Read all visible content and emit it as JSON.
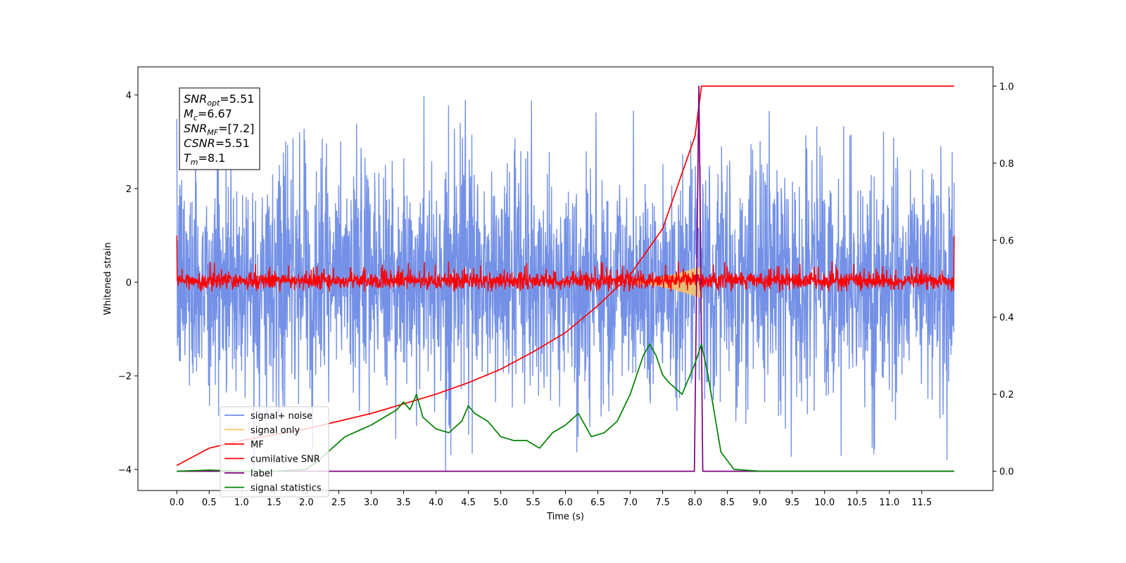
{
  "chart_data": {
    "type": "line",
    "xlabel": "Time (s)",
    "ylabel": "Whitened strain",
    "xlim": [
      -0.6,
      12.6
    ],
    "ylim": [
      -4.45,
      4.6
    ],
    "ylim_right": [
      -0.05,
      1.05
    ],
    "x_ticks": [
      0.0,
      0.5,
      1.0,
      1.5,
      2.0,
      2.5,
      3.0,
      3.5,
      4.0,
      4.5,
      5.0,
      5.5,
      6.0,
      6.5,
      7.0,
      7.5,
      8.0,
      8.5,
      9.0,
      9.5,
      10.0,
      10.5,
      11.0,
      11.5
    ],
    "x_tick_labels": [
      "0.0",
      "0.5",
      "1.0",
      "1.5",
      "2.0",
      "2.5",
      "3.0",
      "3.5",
      "4.0",
      "4.5",
      "5.0",
      "5.5",
      "6.0",
      "6.5",
      "7.0",
      "7.5",
      "8.0",
      "8.5",
      "9.0",
      "9.5",
      "10.0",
      "10.5",
      "11.0",
      "11.5"
    ],
    "y_ticks_left": [
      -4,
      -2,
      0,
      2,
      4
    ],
    "y_tick_labels_left": [
      "−4",
      "−2",
      "0",
      "2",
      "4"
    ],
    "y_ticks_right": [
      0.0,
      0.2,
      0.4,
      0.6,
      0.8,
      1.0
    ],
    "y_tick_labels_right": [
      "0.0",
      "0.2",
      "0.4",
      "0.6",
      "0.8",
      "1.0"
    ],
    "annotation": [
      {
        "sym": "SNR",
        "sub": "opt",
        "rest": "=5.51"
      },
      {
        "sym": "M",
        "sub": "c",
        "rest": "=6.67"
      },
      {
        "sym": "SNR",
        "sub": "MF",
        "rest": "=[7.2]"
      },
      {
        "sym": "CSNR",
        "sub": "",
        "rest": "=5.51"
      },
      {
        "sym": "T",
        "sub": "m",
        "rest": "=8.1"
      }
    ],
    "legend": {
      "position": "lower-left",
      "entries": [
        {
          "label": "signal+ noise",
          "color": "#6d8be6"
        },
        {
          "label": "signal only",
          "color": "#f5c26b"
        },
        {
          "label": "MF",
          "color": "#ff0000"
        },
        {
          "label": "cumilative SNR",
          "color": "#ff0000"
        },
        {
          "label": "label",
          "color": "#800080"
        },
        {
          "label": "signal statistics",
          "color": "#008000"
        }
      ]
    },
    "series": [
      {
        "name": "signal+ noise",
        "axis": "left",
        "color": "#6d8be6",
        "x_range": [
          0,
          12
        ],
        "envelope_typical": [
          -2.0,
          2.5
        ],
        "peak_max": 4.15,
        "peak_min": -4.05
      },
      {
        "name": "signal only",
        "axis": "left",
        "color": "#f5c26b",
        "x_range": [
          7.0,
          8.1
        ],
        "amplitude_max": 0.35
      },
      {
        "name": "MF",
        "axis": "left",
        "color": "#ff0000",
        "x_range": [
          0,
          12
        ],
        "envelope_typical": [
          -0.2,
          0.25
        ],
        "edge_value": 1.0
      },
      {
        "name": "cumilative SNR",
        "axis": "right",
        "color": "#ff0000",
        "x": [
          0.0,
          0.5,
          1.0,
          1.5,
          2.0,
          2.5,
          3.0,
          3.5,
          4.0,
          4.5,
          5.0,
          5.5,
          6.0,
          6.5,
          7.0,
          7.5,
          8.0,
          8.1,
          12.0
        ],
        "y": [
          0.015,
          0.06,
          0.08,
          0.095,
          0.11,
          0.13,
          0.15,
          0.175,
          0.2,
          0.23,
          0.265,
          0.31,
          0.36,
          0.43,
          0.51,
          0.63,
          0.87,
          1.0,
          1.0
        ]
      },
      {
        "name": "label",
        "axis": "right",
        "color": "#800080",
        "x": [
          0.0,
          7.99,
          8.06,
          8.12,
          12.0
        ],
        "y": [
          0.0,
          0.0,
          1.0,
          0.0,
          0.0
        ]
      },
      {
        "name": "signal statistics",
        "axis": "right",
        "color": "#008000",
        "x": [
          0.0,
          0.5,
          1.0,
          1.5,
          2.0,
          2.2,
          2.4,
          2.6,
          2.8,
          3.0,
          3.2,
          3.4,
          3.5,
          3.6,
          3.7,
          3.8,
          4.0,
          4.2,
          4.4,
          4.5,
          4.6,
          4.8,
          5.0,
          5.2,
          5.4,
          5.6,
          5.8,
          6.0,
          6.2,
          6.4,
          6.6,
          6.8,
          7.0,
          7.2,
          7.3,
          7.4,
          7.5,
          7.6,
          7.8,
          8.0,
          8.1,
          8.2,
          8.4,
          8.6,
          9.0,
          12.0
        ],
        "y": [
          0.0,
          0.003,
          0.0,
          0.0,
          0.005,
          0.03,
          0.06,
          0.09,
          0.105,
          0.12,
          0.14,
          0.16,
          0.18,
          0.16,
          0.2,
          0.14,
          0.11,
          0.1,
          0.13,
          0.17,
          0.15,
          0.13,
          0.09,
          0.08,
          0.08,
          0.06,
          0.1,
          0.12,
          0.15,
          0.09,
          0.1,
          0.13,
          0.2,
          0.3,
          0.33,
          0.3,
          0.25,
          0.23,
          0.2,
          0.28,
          0.33,
          0.25,
          0.05,
          0.005,
          0.0,
          0.0
        ]
      }
    ]
  }
}
